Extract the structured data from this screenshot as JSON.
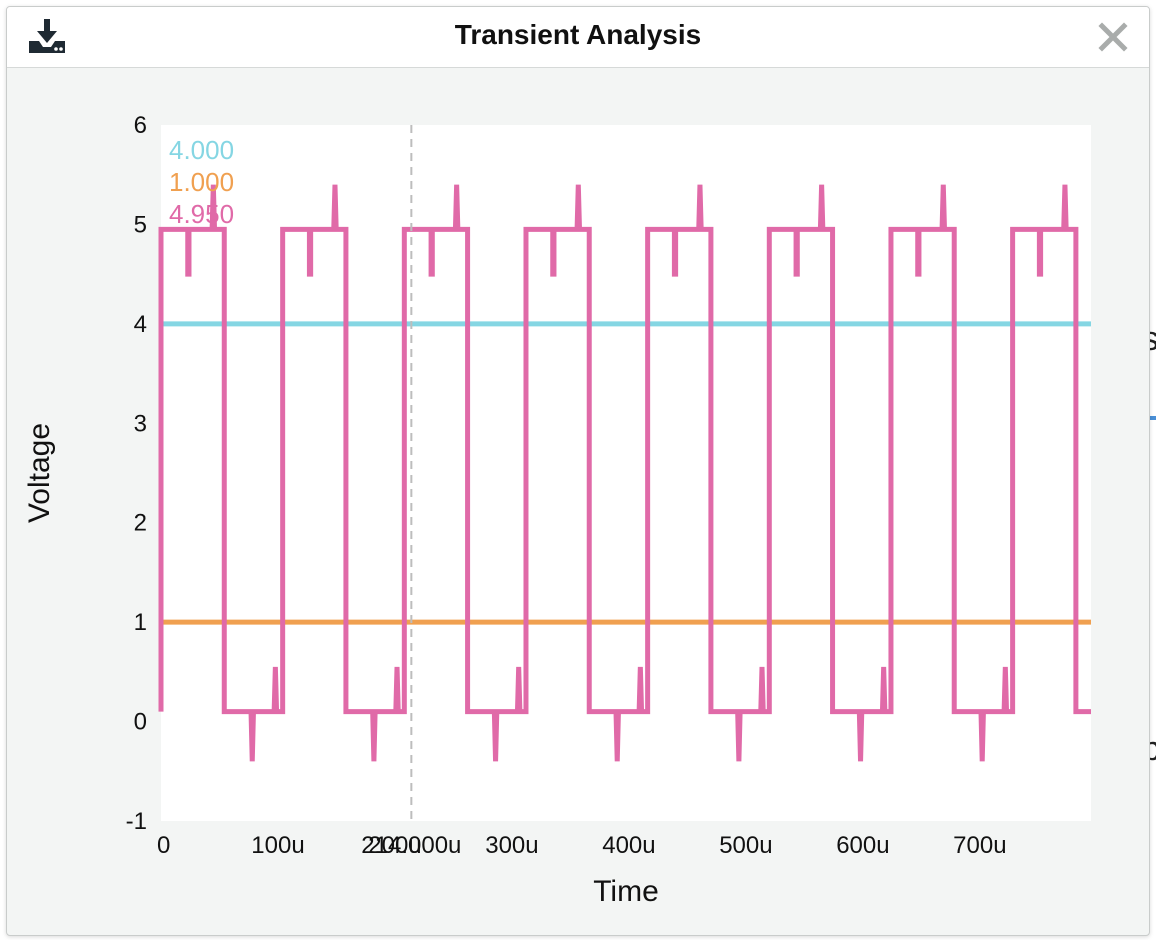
{
  "window": {
    "title": "Transient Analysis",
    "download_icon": "download-icon",
    "close_icon": "close-icon"
  },
  "cursor": {
    "time_label": "214.000u",
    "time_value": 0.000214,
    "readouts": [
      {
        "value": "4.000",
        "color": "#85d6e3"
      },
      {
        "value": "1.000",
        "color": "#f0a050"
      },
      {
        "value": "4.950",
        "color": "#e06aa8"
      }
    ]
  },
  "chart_data": {
    "type": "line",
    "title": "Transient Analysis",
    "xlabel": "Time",
    "ylabel": "Voltage",
    "xlim": [
      0,
      0.000795
    ],
    "ylim": [
      -1,
      6
    ],
    "x_ticks": [
      {
        "value": 0,
        "label": "0"
      },
      {
        "value": 0.0001,
        "label": "100u"
      },
      {
        "value": 0.0002,
        "label": "200u"
      },
      {
        "value": 0.0003,
        "label": "300u"
      },
      {
        "value": 0.0004,
        "label": "400u"
      },
      {
        "value": 0.0005,
        "label": "500u"
      },
      {
        "value": 0.0006,
        "label": "600u"
      },
      {
        "value": 0.0007,
        "label": "700u"
      }
    ],
    "y_ticks": [
      {
        "value": -1,
        "label": "-1"
      },
      {
        "value": 0,
        "label": "0"
      },
      {
        "value": 1,
        "label": "1"
      },
      {
        "value": 2,
        "label": "2"
      },
      {
        "value": 3,
        "label": "3"
      },
      {
        "value": 4,
        "label": "4"
      },
      {
        "value": 5,
        "label": "5"
      },
      {
        "value": 6,
        "label": "6"
      }
    ],
    "series": [
      {
        "name": "V(4.000)",
        "color": "#85d6e3",
        "x": [
          0,
          0.000795
        ],
        "y": [
          4,
          4
        ]
      },
      {
        "name": "V(1.000)",
        "color": "#f0a050",
        "x": [
          0,
          0.000795
        ],
        "y": [
          1,
          1
        ]
      },
      {
        "name": "V(4.950)",
        "color": "#e06aa8",
        "period": 0.000104,
        "duty": 0.52,
        "high": 4.95,
        "low": 0.1,
        "overshoot_high": 5.4,
        "undershoot_low": -0.4,
        "dip_high": 4.5,
        "spike_low": 0.55,
        "x": [
          0,
          0.000795
        ]
      }
    ]
  }
}
